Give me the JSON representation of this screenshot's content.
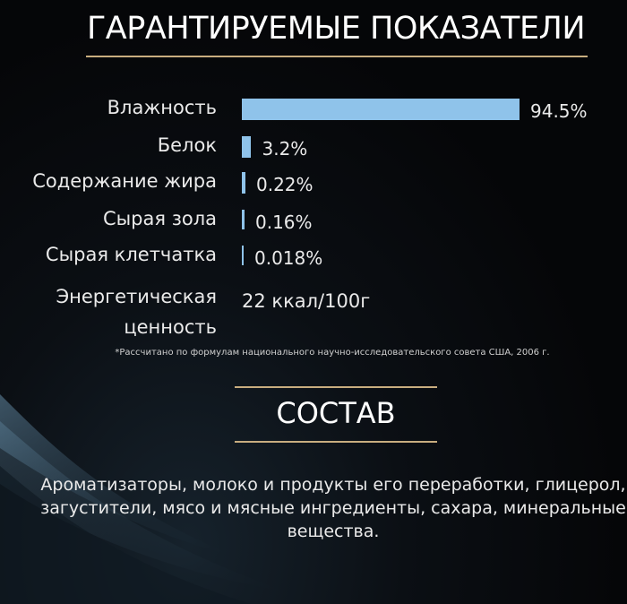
{
  "section1": {
    "title": "ГАРАНТИРУЕМЫЕ ПОКАЗАТЕЛИ"
  },
  "chart_data": {
    "type": "bar",
    "orientation": "horizontal",
    "categories": [
      "Влажность",
      "Белок",
      "Содержание жира",
      "Сырая зола",
      "Сырая клетчатка"
    ],
    "values": [
      94.5,
      3.2,
      0.22,
      0.16,
      0.018
    ],
    "value_labels": [
      "94.5%",
      "3.2%",
      "0.22%",
      "0.16%",
      "0.018%"
    ],
    "bar_color": "#8fc3ea"
  },
  "energy": {
    "label": "Энергетическая ценность",
    "value": "22 ккал/100г"
  },
  "footnote": "*Рассчитано по формулам национального научно-исследовательского совета США, 2006 г.",
  "section2": {
    "title": "СОСТАВ",
    "text": "Ароматизаторы, молоко и продукты его переработки, глицерол, загустители, мясо и мясные ингредиенты, сахара, минеральные вещества."
  },
  "colors": {
    "background": "#050608",
    "accent_line": "#c8ad7f",
    "bar": "#8fc3ea"
  }
}
